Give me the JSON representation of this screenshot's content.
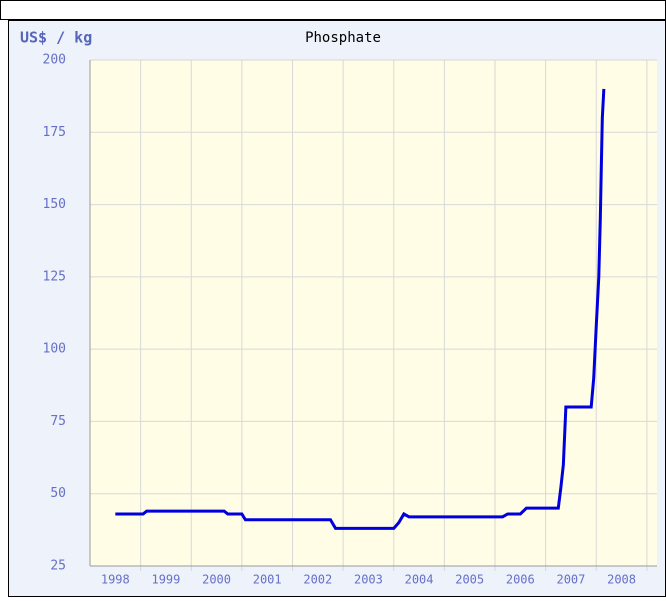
{
  "chart_data": {
    "type": "line",
    "title": "Phosphate",
    "y_label": "US$ / kg",
    "x": [
      1998.5,
      1999.05,
      1999.12,
      2000.65,
      2000.72,
      2001.0,
      2001.07,
      2002.75,
      2002.85,
      2004.0,
      2004.1,
      2004.2,
      2004.3,
      2006.15,
      2006.25,
      2006.5,
      2006.62,
      2007.25,
      2007.3,
      2007.35,
      2007.4,
      2007.9,
      2007.95,
      2008.0,
      2008.05,
      2008.08,
      2008.1,
      2008.12,
      2008.15
    ],
    "series": [
      {
        "name": "Phosphate",
        "color": "#0000dd",
        "values": [
          43,
          43,
          44,
          44,
          43,
          43,
          41,
          41,
          38,
          38,
          40,
          43,
          42,
          42,
          43,
          43,
          45,
          45,
          52,
          60,
          80,
          80,
          90,
          108,
          125,
          145,
          163,
          180,
          190
        ]
      }
    ],
    "xlim": [
      1998,
      2009.2
    ],
    "xticks": [
      {
        "value": 1998.5,
        "label": "1998"
      },
      {
        "value": 1999.5,
        "label": "1999"
      },
      {
        "value": 2000.5,
        "label": "2000"
      },
      {
        "value": 2001.5,
        "label": "2001"
      },
      {
        "value": 2002.5,
        "label": "2002"
      },
      {
        "value": 2003.5,
        "label": "2003"
      },
      {
        "value": 2004.5,
        "label": "2004"
      },
      {
        "value": 2005.5,
        "label": "2005"
      },
      {
        "value": 2006.5,
        "label": "2006"
      },
      {
        "value": 2007.5,
        "label": "2007"
      },
      {
        "value": 2008.5,
        "label": "2008"
      }
    ],
    "ylim": [
      25,
      200
    ],
    "yticks": [
      25,
      50,
      75,
      100,
      125,
      150,
      175,
      200
    ],
    "grid": true
  }
}
